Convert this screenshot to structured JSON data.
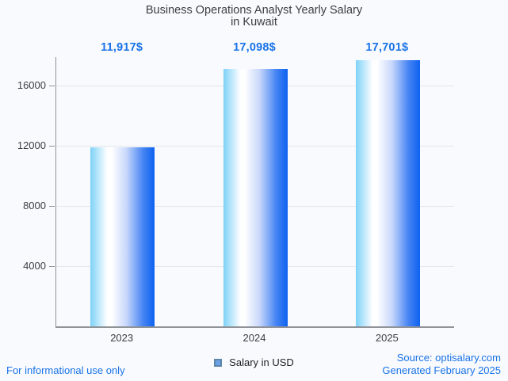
{
  "title": {
    "line1": "Business Operations Analyst Yearly Salary",
    "line2": "in Kuwait"
  },
  "chart_data": {
    "type": "bar",
    "categories": [
      "2023",
      "2024",
      "2025"
    ],
    "values": [
      11917,
      17098,
      17701
    ],
    "value_labels": [
      "11,917$",
      "17,098$",
      "17,701$"
    ],
    "title": "Business Operations Analyst Yearly Salary in Kuwait",
    "xlabel": "",
    "ylabel": "",
    "yticks": [
      4000,
      8000,
      12000,
      16000
    ],
    "ylim": [
      0,
      17900
    ],
    "grid": true,
    "legend_position": "bottom",
    "series": [
      {
        "name": "Salary in USD",
        "values": [
          11917,
          17098,
          17701
        ]
      }
    ],
    "bar_gradient": [
      "#7ed2f8",
      "#ffffff",
      "#0c62f0"
    ]
  },
  "legend": {
    "label": "Salary in USD",
    "swatch_color": "#6ba1e4"
  },
  "footer": {
    "left": "For informational use only",
    "source": "Source: optisalary.com",
    "generated": "Generated February 2025"
  },
  "colors": {
    "accent_text": "#1a73e8",
    "title_text": "#3c4043",
    "axis_text": "#3c4043",
    "axis_line": "#8f9296",
    "gridline": "#e4e7eb",
    "background": "#f8fafd"
  }
}
